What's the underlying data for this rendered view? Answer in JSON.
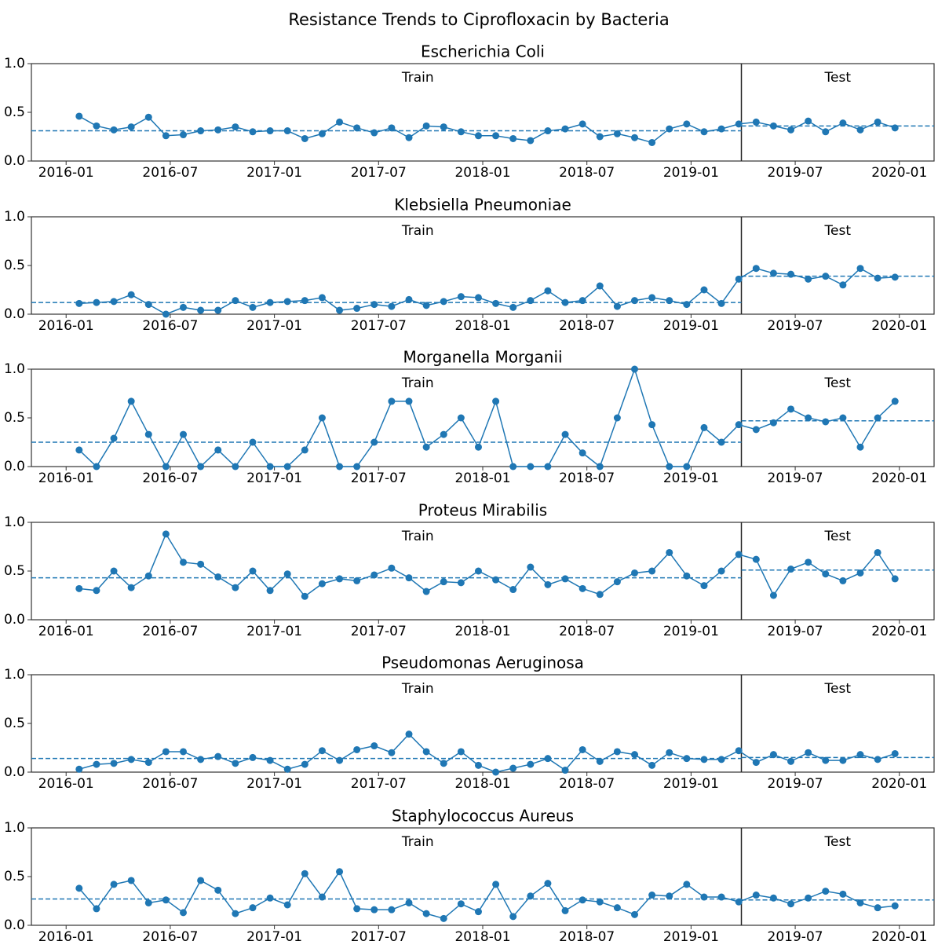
{
  "title": "Resistance Trends to Ciprofloxacin by Bacteria",
  "chart_data": [
    {
      "type": "line",
      "title": "Escherichia Coli",
      "color": "#1f77b4",
      "x": [
        "2016-01",
        "2016-02",
        "2016-03",
        "2016-04",
        "2016-05",
        "2016-06",
        "2016-07",
        "2016-08",
        "2016-09",
        "2016-10",
        "2016-11",
        "2016-12",
        "2017-01",
        "2017-02",
        "2017-03",
        "2017-04",
        "2017-05",
        "2017-06",
        "2017-07",
        "2017-08",
        "2017-09",
        "2017-10",
        "2017-11",
        "2017-12",
        "2018-01",
        "2018-02",
        "2018-03",
        "2018-04",
        "2018-05",
        "2018-06",
        "2018-07",
        "2018-08",
        "2018-09",
        "2018-10",
        "2018-11",
        "2018-12",
        "2019-01",
        "2019-02",
        "2019-03",
        "2019-04",
        "2019-05",
        "2019-06",
        "2019-07",
        "2019-08",
        "2019-09",
        "2019-10",
        "2019-11",
        "2019-12"
      ],
      "values": [
        0.46,
        0.36,
        0.32,
        0.35,
        0.45,
        0.26,
        0.27,
        0.31,
        0.32,
        0.35,
        0.3,
        0.31,
        0.31,
        0.23,
        0.28,
        0.4,
        0.34,
        0.29,
        0.34,
        0.24,
        0.36,
        0.35,
        0.3,
        0.26,
        0.26,
        0.23,
        0.21,
        0.31,
        0.33,
        0.38,
        0.25,
        0.28,
        0.24,
        0.19,
        0.33,
        0.38,
        0.3,
        0.33,
        0.38,
        0.4,
        0.36,
        0.32,
        0.41,
        0.3,
        0.39,
        0.32,
        0.4,
        0.34
      ],
      "segments": [
        {
          "label": "Train",
          "mean": 0.31,
          "from": "2016-01",
          "to": "2019-02"
        },
        {
          "label": "Test",
          "mean": 0.36,
          "from": "2019-03",
          "to": "2019-12"
        }
      ],
      "xlim": [
        "2015-11",
        "2020-03"
      ],
      "xticks": [
        "2016-01",
        "2016-07",
        "2017-01",
        "2017-07",
        "2018-01",
        "2018-07",
        "2019-01",
        "2019-07",
        "2020-01"
      ],
      "ylim": [
        0,
        1
      ],
      "yticks": [
        {
          "value": 0,
          "label": "0.0"
        },
        {
          "value": 0.5,
          "label": "0.5"
        },
        {
          "value": 1,
          "label": "1.0"
        }
      ]
    },
    {
      "type": "line",
      "title": "Klebsiella Pneumoniae",
      "color": "#1f77b4",
      "x": [
        "2016-01",
        "2016-02",
        "2016-03",
        "2016-04",
        "2016-05",
        "2016-06",
        "2016-07",
        "2016-08",
        "2016-09",
        "2016-10",
        "2016-11",
        "2016-12",
        "2017-01",
        "2017-02",
        "2017-03",
        "2017-04",
        "2017-05",
        "2017-06",
        "2017-07",
        "2017-08",
        "2017-09",
        "2017-10",
        "2017-11",
        "2017-12",
        "2018-01",
        "2018-02",
        "2018-03",
        "2018-04",
        "2018-05",
        "2018-06",
        "2018-07",
        "2018-08",
        "2018-09",
        "2018-10",
        "2018-11",
        "2018-12",
        "2019-01",
        "2019-02",
        "2019-03",
        "2019-04",
        "2019-05",
        "2019-06",
        "2019-07",
        "2019-08",
        "2019-09",
        "2019-10",
        "2019-11",
        "2019-12"
      ],
      "values": [
        0.11,
        0.12,
        0.13,
        0.2,
        0.1,
        0.0,
        0.07,
        0.04,
        0.04,
        0.14,
        0.07,
        0.12,
        0.13,
        0.14,
        0.17,
        0.04,
        0.06,
        0.1,
        0.08,
        0.15,
        0.09,
        0.13,
        0.18,
        0.17,
        0.11,
        0.07,
        0.14,
        0.24,
        0.12,
        0.14,
        0.29,
        0.08,
        0.14,
        0.17,
        0.14,
        0.1,
        0.25,
        0.11,
        0.36,
        0.47,
        0.42,
        0.41,
        0.36,
        0.39,
        0.3,
        0.47,
        0.37,
        0.38
      ],
      "segments": [
        {
          "label": "Train",
          "mean": 0.12,
          "from": "2016-01",
          "to": "2019-02"
        },
        {
          "label": "Test",
          "mean": 0.39,
          "from": "2019-03",
          "to": "2019-12"
        }
      ],
      "xlim": [
        "2015-11",
        "2020-03"
      ],
      "xticks": [
        "2016-01",
        "2016-07",
        "2017-01",
        "2017-07",
        "2018-01",
        "2018-07",
        "2019-01",
        "2019-07",
        "2020-01"
      ],
      "ylim": [
        0,
        1
      ],
      "yticks": [
        {
          "value": 0,
          "label": "0.0"
        },
        {
          "value": 0.5,
          "label": "0.5"
        },
        {
          "value": 1,
          "label": "1.0"
        }
      ]
    },
    {
      "type": "line",
      "title": "Morganella Morganii",
      "color": "#1f77b4",
      "x": [
        "2016-01",
        "2016-02",
        "2016-03",
        "2016-04",
        "2016-05",
        "2016-06",
        "2016-07",
        "2016-08",
        "2016-09",
        "2016-10",
        "2016-11",
        "2016-12",
        "2017-01",
        "2017-02",
        "2017-03",
        "2017-04",
        "2017-05",
        "2017-06",
        "2017-07",
        "2017-08",
        "2017-09",
        "2017-10",
        "2017-11",
        "2017-12",
        "2018-01",
        "2018-02",
        "2018-03",
        "2018-04",
        "2018-05",
        "2018-06",
        "2018-07",
        "2018-08",
        "2018-09",
        "2018-10",
        "2018-11",
        "2018-12",
        "2019-01",
        "2019-02",
        "2019-03",
        "2019-04",
        "2019-05",
        "2019-06",
        "2019-07",
        "2019-08",
        "2019-09",
        "2019-10",
        "2019-11",
        "2019-12"
      ],
      "values": [
        0.17,
        0.0,
        0.29,
        0.67,
        0.33,
        0.0,
        0.33,
        0.0,
        0.17,
        0.0,
        0.25,
        0.0,
        0.0,
        0.17,
        0.5,
        0.0,
        0.0,
        0.25,
        0.67,
        0.67,
        0.2,
        0.33,
        0.5,
        0.2,
        0.67,
        0.0,
        0.0,
        0.0,
        0.33,
        0.14,
        0.0,
        0.5,
        1.0,
        0.43,
        0.0,
        0.0,
        0.4,
        0.25,
        0.43,
        0.38,
        0.45,
        0.59,
        0.5,
        0.46,
        0.5,
        0.2,
        0.5,
        0.67
      ],
      "segments": [
        {
          "label": "Train",
          "mean": 0.25,
          "from": "2016-01",
          "to": "2019-02"
        },
        {
          "label": "Test",
          "mean": 0.47,
          "from": "2019-03",
          "to": "2019-12"
        }
      ],
      "xlim": [
        "2015-11",
        "2020-03"
      ],
      "xticks": [
        "2016-01",
        "2016-07",
        "2017-01",
        "2017-07",
        "2018-01",
        "2018-07",
        "2019-01",
        "2019-07",
        "2020-01"
      ],
      "ylim": [
        0,
        1
      ],
      "yticks": [
        {
          "value": 0,
          "label": "0.0"
        },
        {
          "value": 0.5,
          "label": "0.5"
        },
        {
          "value": 1,
          "label": "1.0"
        }
      ]
    },
    {
      "type": "line",
      "title": "Proteus Mirabilis",
      "color": "#1f77b4",
      "x": [
        "2016-01",
        "2016-02",
        "2016-03",
        "2016-04",
        "2016-05",
        "2016-06",
        "2016-07",
        "2016-08",
        "2016-09",
        "2016-10",
        "2016-11",
        "2016-12",
        "2017-01",
        "2017-02",
        "2017-03",
        "2017-04",
        "2017-05",
        "2017-06",
        "2017-07",
        "2017-08",
        "2017-09",
        "2017-10",
        "2017-11",
        "2017-12",
        "2018-01",
        "2018-02",
        "2018-03",
        "2018-04",
        "2018-05",
        "2018-06",
        "2018-07",
        "2018-08",
        "2018-09",
        "2018-10",
        "2018-11",
        "2018-12",
        "2019-01",
        "2019-02",
        "2019-03",
        "2019-04",
        "2019-05",
        "2019-06",
        "2019-07",
        "2019-08",
        "2019-09",
        "2019-10",
        "2019-11",
        "2019-12"
      ],
      "values": [
        0.32,
        0.3,
        0.5,
        0.33,
        0.45,
        0.88,
        0.59,
        0.57,
        0.44,
        0.33,
        0.5,
        0.3,
        0.47,
        0.24,
        0.37,
        0.42,
        0.4,
        0.46,
        0.53,
        0.43,
        0.29,
        0.39,
        0.38,
        0.5,
        0.41,
        0.31,
        0.54,
        0.36,
        0.42,
        0.32,
        0.26,
        0.39,
        0.48,
        0.5,
        0.69,
        0.45,
        0.35,
        0.5,
        0.67,
        0.62,
        0.25,
        0.52,
        0.59,
        0.47,
        0.4,
        0.48,
        0.69,
        0.42
      ],
      "segments": [
        {
          "label": "Train",
          "mean": 0.43,
          "from": "2016-01",
          "to": "2019-02"
        },
        {
          "label": "Test",
          "mean": 0.51,
          "from": "2019-03",
          "to": "2019-12"
        }
      ],
      "xlim": [
        "2015-11",
        "2020-03"
      ],
      "xticks": [
        "2016-01",
        "2016-07",
        "2017-01",
        "2017-07",
        "2018-01",
        "2018-07",
        "2019-01",
        "2019-07",
        "2020-01"
      ],
      "ylim": [
        0,
        1
      ],
      "yticks": [
        {
          "value": 0,
          "label": "0.0"
        },
        {
          "value": 0.5,
          "label": "0.5"
        },
        {
          "value": 1,
          "label": "1.0"
        }
      ]
    },
    {
      "type": "line",
      "title": "Pseudomonas Aeruginosa",
      "color": "#1f77b4",
      "x": [
        "2016-01",
        "2016-02",
        "2016-03",
        "2016-04",
        "2016-05",
        "2016-06",
        "2016-07",
        "2016-08",
        "2016-09",
        "2016-10",
        "2016-11",
        "2016-12",
        "2017-01",
        "2017-02",
        "2017-03",
        "2017-04",
        "2017-05",
        "2017-06",
        "2017-07",
        "2017-08",
        "2017-09",
        "2017-10",
        "2017-11",
        "2017-12",
        "2018-01",
        "2018-02",
        "2018-03",
        "2018-04",
        "2018-05",
        "2018-06",
        "2018-07",
        "2018-08",
        "2018-09",
        "2018-10",
        "2018-11",
        "2018-12",
        "2019-01",
        "2019-02",
        "2019-03",
        "2019-04",
        "2019-05",
        "2019-06",
        "2019-07",
        "2019-08",
        "2019-09",
        "2019-10",
        "2019-11",
        "2019-12"
      ],
      "values": [
        0.03,
        0.08,
        0.09,
        0.13,
        0.1,
        0.21,
        0.21,
        0.13,
        0.16,
        0.09,
        0.15,
        0.12,
        0.03,
        0.08,
        0.22,
        0.12,
        0.23,
        0.27,
        0.2,
        0.39,
        0.21,
        0.09,
        0.21,
        0.07,
        0.0,
        0.04,
        0.08,
        0.14,
        0.02,
        0.23,
        0.11,
        0.21,
        0.18,
        0.07,
        0.2,
        0.14,
        0.13,
        0.13,
        0.22,
        0.1,
        0.18,
        0.11,
        0.2,
        0.12,
        0.12,
        0.18,
        0.13,
        0.19
      ],
      "segments": [
        {
          "label": "Train",
          "mean": 0.14,
          "from": "2016-01",
          "to": "2019-02"
        },
        {
          "label": "Test",
          "mean": 0.15,
          "from": "2019-03",
          "to": "2019-12"
        }
      ],
      "xlim": [
        "2015-11",
        "2020-03"
      ],
      "xticks": [
        "2016-01",
        "2016-07",
        "2017-01",
        "2017-07",
        "2018-01",
        "2018-07",
        "2019-01",
        "2019-07",
        "2020-01"
      ],
      "ylim": [
        0,
        1
      ],
      "yticks": [
        {
          "value": 0,
          "label": "0.0"
        },
        {
          "value": 0.5,
          "label": "0.5"
        },
        {
          "value": 1,
          "label": "1.0"
        }
      ]
    },
    {
      "type": "line",
      "title": "Staphylococcus Aureus",
      "color": "#1f77b4",
      "x": [
        "2016-01",
        "2016-02",
        "2016-03",
        "2016-04",
        "2016-05",
        "2016-06",
        "2016-07",
        "2016-08",
        "2016-09",
        "2016-10",
        "2016-11",
        "2016-12",
        "2017-01",
        "2017-02",
        "2017-03",
        "2017-04",
        "2017-05",
        "2017-06",
        "2017-07",
        "2017-08",
        "2017-09",
        "2017-10",
        "2017-11",
        "2017-12",
        "2018-01",
        "2018-02",
        "2018-03",
        "2018-04",
        "2018-05",
        "2018-06",
        "2018-07",
        "2018-08",
        "2018-09",
        "2018-10",
        "2018-11",
        "2018-12",
        "2019-01",
        "2019-02",
        "2019-03",
        "2019-04",
        "2019-05",
        "2019-06",
        "2019-07",
        "2019-08",
        "2019-09",
        "2019-10",
        "2019-11",
        "2019-12"
      ],
      "values": [
        0.38,
        0.17,
        0.42,
        0.46,
        0.23,
        0.26,
        0.13,
        0.46,
        0.36,
        0.12,
        0.18,
        0.28,
        0.21,
        0.53,
        0.29,
        0.55,
        0.17,
        0.16,
        0.16,
        0.23,
        0.12,
        0.07,
        0.22,
        0.14,
        0.42,
        0.09,
        0.3,
        0.43,
        0.15,
        0.26,
        0.24,
        0.18,
        0.11,
        0.31,
        0.3,
        0.42,
        0.29,
        0.29,
        0.24,
        0.31,
        0.28,
        0.22,
        0.28,
        0.35,
        0.32,
        0.23,
        0.18,
        0.2
      ],
      "segments": [
        {
          "label": "Train",
          "mean": 0.27,
          "from": "2016-01",
          "to": "2019-02"
        },
        {
          "label": "Test",
          "mean": 0.26,
          "from": "2019-03",
          "to": "2019-12"
        }
      ],
      "xlim": [
        "2015-11",
        "2020-03"
      ],
      "xticks": [
        "2016-01",
        "2016-07",
        "2017-01",
        "2017-07",
        "2018-01",
        "2018-07",
        "2019-01",
        "2019-07",
        "2020-01"
      ],
      "ylim": [
        0,
        1
      ],
      "yticks": [
        {
          "value": 0,
          "label": "0.0"
        },
        {
          "value": 0.5,
          "label": "0.5"
        },
        {
          "value": 1,
          "label": "1.0"
        }
      ]
    }
  ]
}
